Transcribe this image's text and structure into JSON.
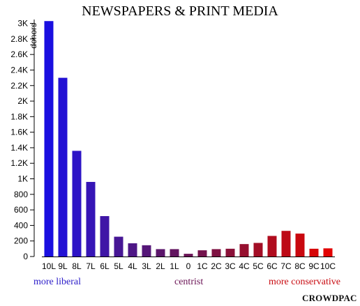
{
  "chart_data": {
    "type": "bar",
    "title": "NEWSPAPERS & PRINT MEDIA",
    "ylabel": "donors",
    "xlabel": "",
    "ylim": [
      0,
      3050
    ],
    "yticks": [
      0,
      200,
      400,
      600,
      800,
      1000,
      1200,
      1400,
      1600,
      1800,
      2000,
      2200,
      2400,
      2600,
      2800,
      3000
    ],
    "ytick_labels": [
      "0",
      "200",
      "400",
      "600",
      "800",
      "1K",
      "1.2K",
      "1.4K",
      "1.6K",
      "1.8K",
      "2K",
      "2.2K",
      "2.4K",
      "2.6K",
      "2.8K",
      "3K"
    ],
    "categories": [
      "10L",
      "9L",
      "8L",
      "7L",
      "6L",
      "5L",
      "4L",
      "3L",
      "2L",
      "1L",
      "0",
      "1C",
      "2C",
      "3C",
      "4C",
      "5C",
      "6C",
      "7C",
      "8C",
      "9C",
      "10C"
    ],
    "values": [
      3030,
      2300,
      1360,
      960,
      520,
      255,
      170,
      145,
      95,
      95,
      35,
      80,
      95,
      100,
      160,
      175,
      265,
      330,
      295,
      100,
      105
    ],
    "colors": [
      "#1a0fe0",
      "#2312d4",
      "#2d14c6",
      "#3615b6",
      "#3f16a6",
      "#471795",
      "#4e1786",
      "#551778",
      "#5b166b",
      "#621560",
      "#6a1456",
      "#73134c",
      "#7e1242",
      "#8a1138",
      "#96102f",
      "#a30e26",
      "#b00c1e",
      "#bd0a16",
      "#c9080f",
      "#d60608",
      "#e20303"
    ],
    "grid": false,
    "legend": null
  },
  "footer": {
    "left": "more liberal",
    "center": "centrist",
    "right": "more conservative",
    "left_color": "#2a1bc8",
    "center_color": "#6b1456",
    "right_color": "#c80a10"
  },
  "brand": "CROWDPAC"
}
